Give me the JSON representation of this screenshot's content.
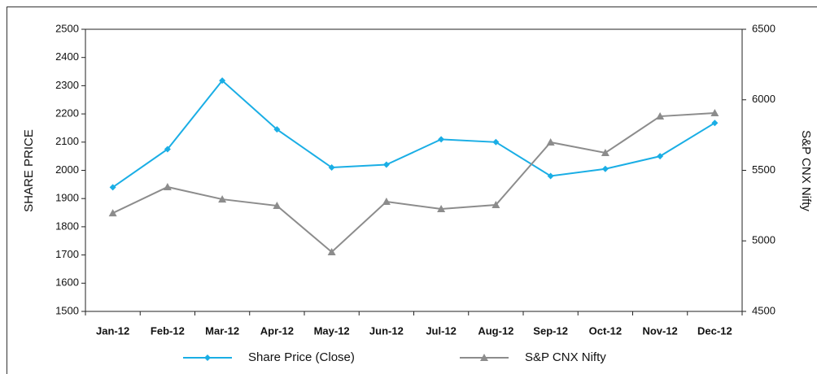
{
  "chart_data": {
    "type": "line",
    "categories": [
      "Jan-12",
      "Feb-12",
      "Mar-12",
      "Apr-12",
      "May-12",
      "Jun-12",
      "Jul-12",
      "Aug-12",
      "Sep-12",
      "Oct-12",
      "Nov-12",
      "Dec-12"
    ],
    "series": [
      {
        "name": "Share Price (Close)",
        "color": "#1aaee5",
        "marker": "diamond",
        "values": [
          1940,
          2075,
          2318,
          2145,
          2010,
          2020,
          2110,
          2100,
          1980,
          2005,
          2050,
          2168
        ]
      },
      {
        "name": "S&P CNX Nifty",
        "color": "#8c8c8c",
        "marker": "triangle",
        "axis": "y2",
        "values": [
          5197,
          5382,
          5295,
          5249,
          4921,
          5278,
          5226,
          5255,
          5699,
          5624,
          5883,
          5906
        ]
      }
    ],
    "ylabel": "SHARE PRICE",
    "y2label": "S&P CNX Nifty",
    "ylim": [
      1500,
      2500
    ],
    "yticks": [
      1500,
      1600,
      1700,
      1800,
      1900,
      2000,
      2100,
      2200,
      2300,
      2400,
      2500
    ],
    "y2lim": [
      4500,
      6500
    ],
    "y2ticks": [
      4500,
      5000,
      5500,
      6000,
      6500
    ],
    "legend": "bottom"
  }
}
